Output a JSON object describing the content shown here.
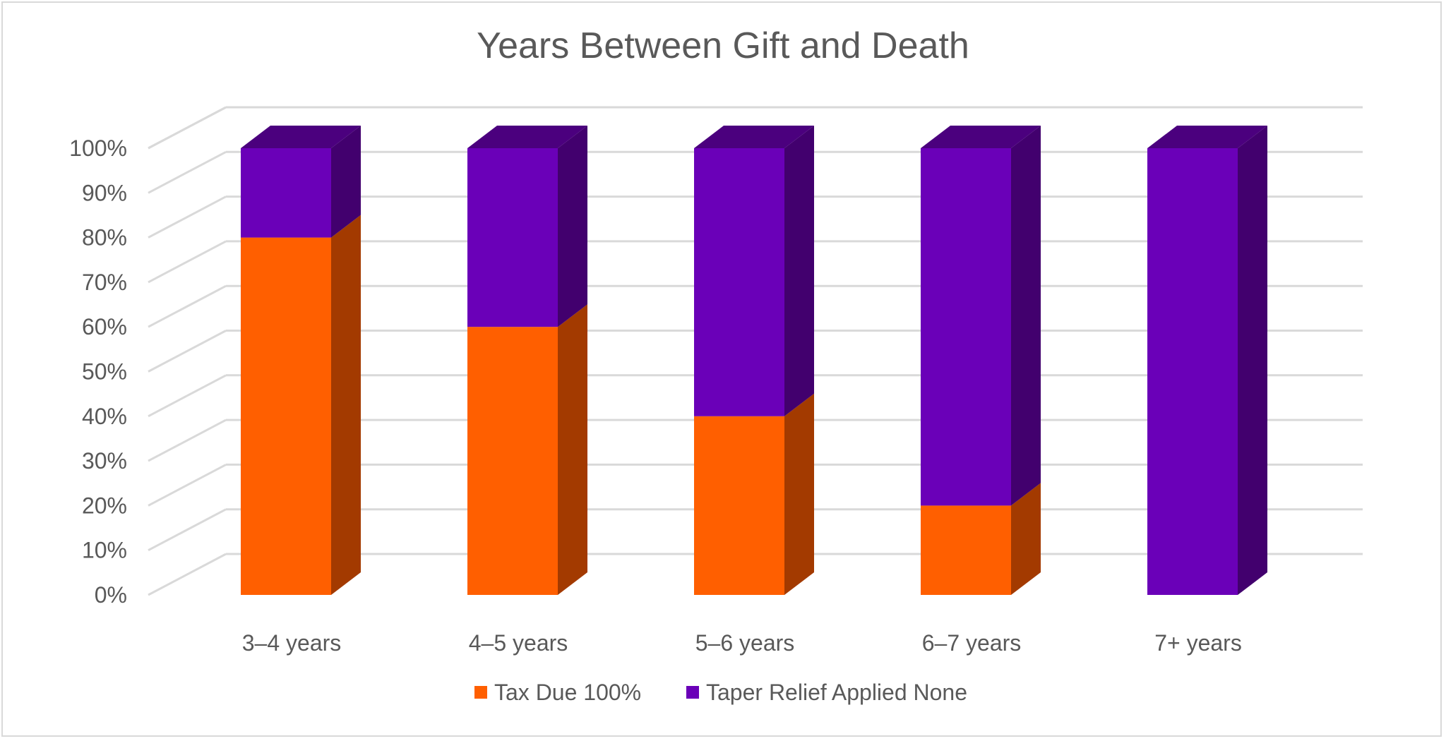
{
  "chart_data": {
    "type": "bar",
    "stacked": true,
    "percent_stacked": true,
    "three_d": true,
    "title": "Years Between Gift and Death",
    "categories": [
      "3–4 years",
      "4–5 years",
      "5–6 years",
      "6–7 years",
      "7+ years"
    ],
    "series": [
      {
        "name": "Tax Due 100%",
        "values": [
          80,
          60,
          40,
          20,
          0
        ],
        "color": "#ff5f00",
        "side_color": "#a33a00",
        "top_color": "#a33a00"
      },
      {
        "name": "Taper Relief Applied None",
        "values": [
          20,
          40,
          60,
          80,
          100
        ],
        "color": "#6a00b8",
        "side_color": "#42006e",
        "top_color": "#4b007e"
      }
    ],
    "ylim": [
      0,
      100
    ],
    "yticks": [
      "0%",
      "10%",
      "20%",
      "30%",
      "40%",
      "50%",
      "60%",
      "70%",
      "80%",
      "90%",
      "100%"
    ],
    "grid": true,
    "legend_position": "bottom"
  }
}
